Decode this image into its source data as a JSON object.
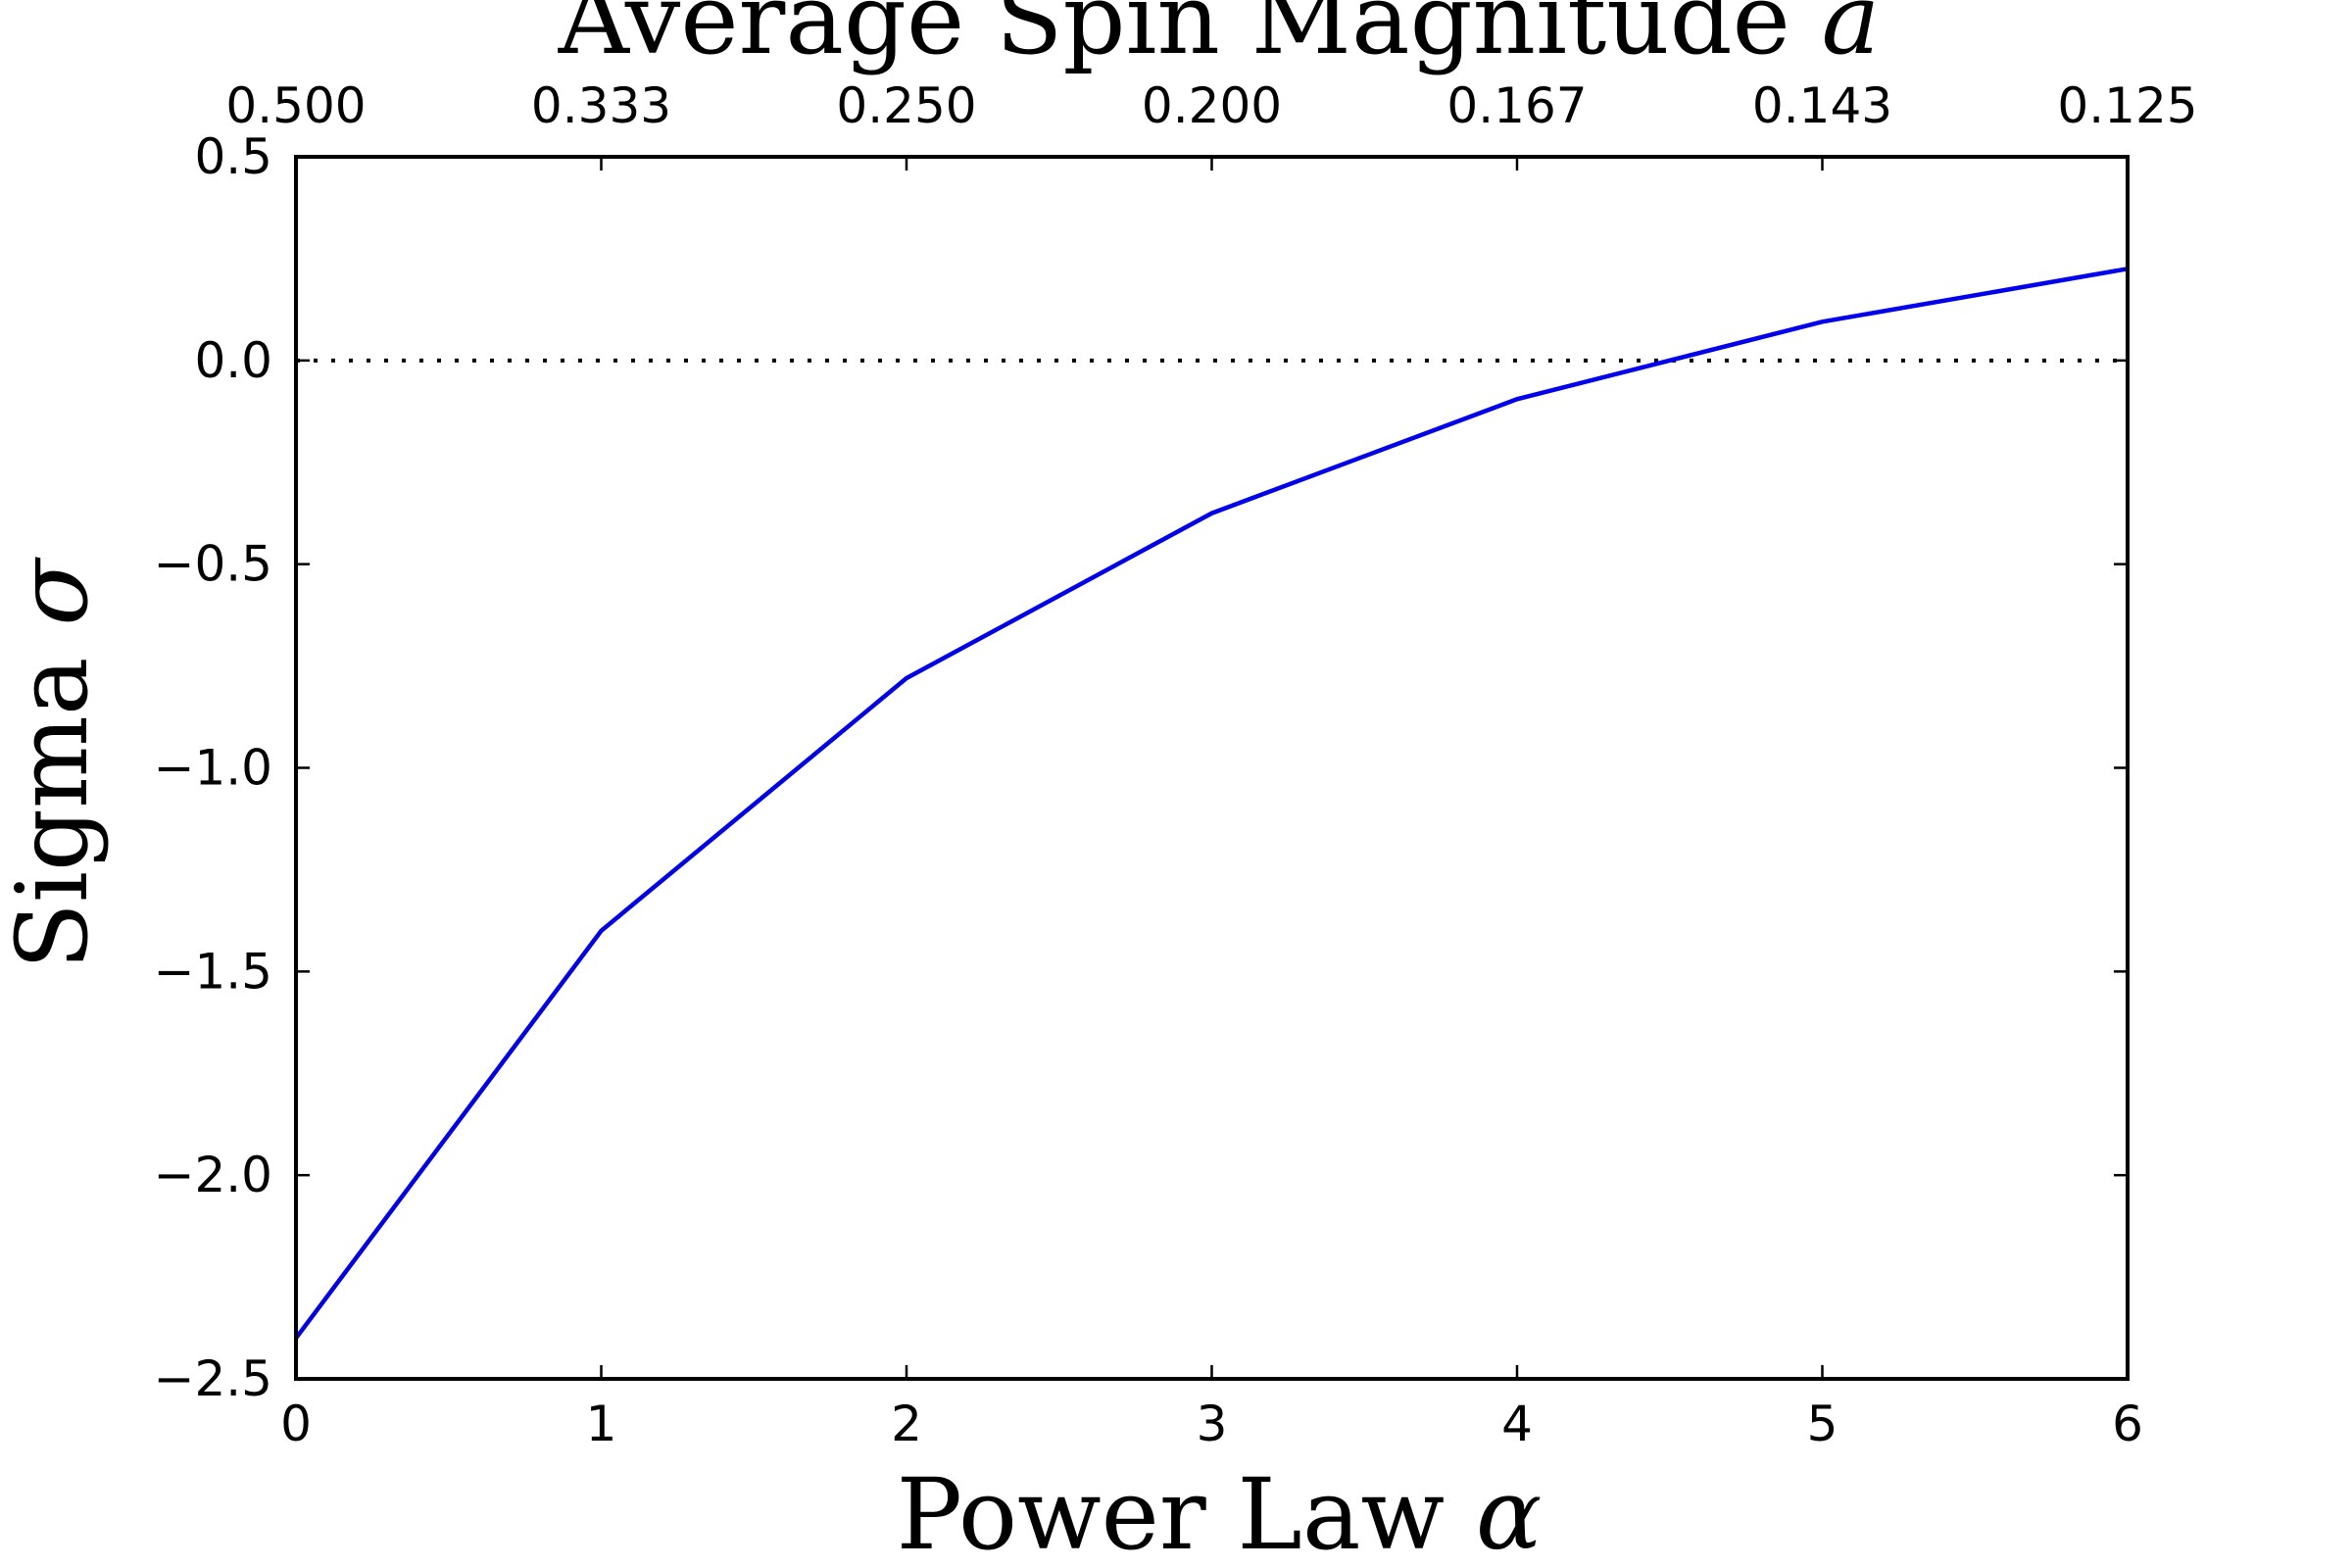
{
  "chart_data": {
    "type": "line",
    "xlabel_text": "Power Law ",
    "xlabel_symbol": "α",
    "ylabel_text": "Sigma ",
    "ylabel_symbol": "σ",
    "top_xlabel_text": "Average Spin Magnitude ",
    "top_xlabel_symbol": "a",
    "xlim": [
      0,
      6
    ],
    "ylim": [
      -2.5,
      0.5
    ],
    "x_ticks": [
      0,
      1,
      2,
      3,
      4,
      5,
      6
    ],
    "x_tick_labels": [
      "0",
      "1",
      "2",
      "3",
      "4",
      "5",
      "6"
    ],
    "y_ticks": [
      0.5,
      0.0,
      -0.5,
      -1.0,
      -1.5,
      -2.0,
      -2.5
    ],
    "y_tick_labels": [
      "0.5",
      "0.0",
      "−0.5",
      "−1.0",
      "−1.5",
      "−2.0",
      "−2.5"
    ],
    "top_x_tick_labels": [
      "0.500",
      "0.333",
      "0.250",
      "0.200",
      "0.167",
      "0.143",
      "0.125"
    ],
    "series": [
      {
        "color": "#0000ee",
        "x": [
          0,
          1,
          2,
          3,
          4,
          5,
          6
        ],
        "y": [
          -2.4,
          -1.4,
          -0.78,
          -0.375,
          -0.095,
          0.095,
          0.225
        ]
      }
    ],
    "reference_line": {
      "y": 0.0,
      "style": "dotted",
      "color": "#000000"
    },
    "grid": false,
    "legend": "none"
  }
}
